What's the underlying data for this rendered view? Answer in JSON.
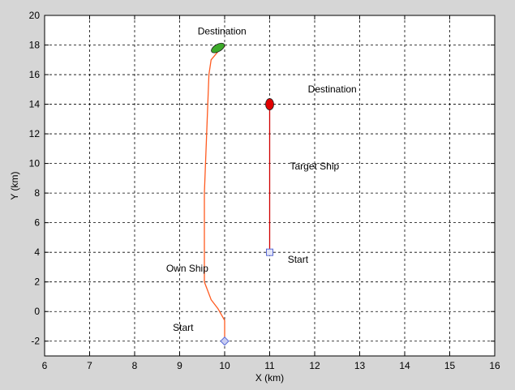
{
  "chart_data": {
    "type": "line",
    "xlabel": "X (km)",
    "ylabel": "Y (km)",
    "xlim": [
      6,
      16
    ],
    "ylim": [
      -3,
      20
    ],
    "xticks": [
      6,
      7,
      8,
      9,
      10,
      11,
      12,
      13,
      14,
      15,
      16
    ],
    "yticks": [
      -2,
      0,
      2,
      4,
      6,
      8,
      10,
      12,
      14,
      16,
      18,
      20
    ],
    "grid": true,
    "series": [
      {
        "name": "Own Ship",
        "color": "#ff5a1f",
        "points": [
          [
            10,
            -2
          ],
          [
            10,
            -0.6
          ],
          [
            9.85,
            0.2
          ],
          [
            9.7,
            0.8
          ],
          [
            9.55,
            2.0
          ],
          [
            9.55,
            4.0
          ],
          [
            9.55,
            8.0
          ],
          [
            9.6,
            12.0
          ],
          [
            9.65,
            16.0
          ],
          [
            9.7,
            17.0
          ],
          [
            9.85,
            17.55
          ],
          [
            10.0,
            17.9
          ]
        ]
      },
      {
        "name": "Target Ship",
        "color": "#d00000",
        "points": [
          [
            11,
            4
          ],
          [
            11,
            13.8
          ]
        ]
      }
    ],
    "markers": [
      {
        "name": "own-start-marker",
        "shape": "diamond",
        "x": 10,
        "y": -2,
        "color": "#5a6bd6"
      },
      {
        "name": "own-destination-ship",
        "shape": "ellipse",
        "x": 9.85,
        "y": 17.8,
        "color": "#3caa2a"
      },
      {
        "name": "target-start-marker",
        "shape": "square",
        "x": 11,
        "y": 4,
        "color": "#5a6bd6"
      },
      {
        "name": "target-destination-ship",
        "shape": "ellipse",
        "x": 11,
        "y": 14,
        "color": "#e00000"
      }
    ],
    "annotations": [
      {
        "name": "annotation-destination-own",
        "text": "Destination",
        "x": 9.4,
        "y": 18.7
      },
      {
        "name": "annotation-destination-target",
        "text": "Destination",
        "x": 11.85,
        "y": 14.8
      },
      {
        "name": "annotation-target-ship",
        "text": "Target Ship",
        "x": 11.45,
        "y": 9.6
      },
      {
        "name": "annotation-own-ship",
        "text": "Own Ship",
        "x": 8.7,
        "y": 2.7
      },
      {
        "name": "annotation-start-target",
        "text": "Start",
        "x": 11.4,
        "y": 3.3
      },
      {
        "name": "annotation-start-own",
        "text": "Start",
        "x": 8.85,
        "y": -1.3
      }
    ]
  }
}
